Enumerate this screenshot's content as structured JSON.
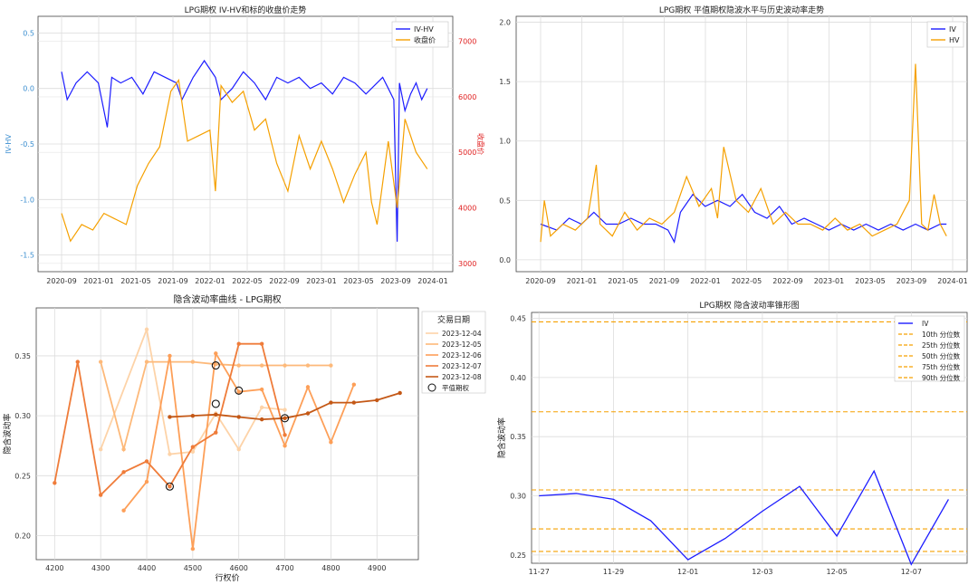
{
  "chart_data": [
    {
      "id": "iv_hv_close",
      "type": "line",
      "title": "LPG期权 IV-HV和标的收盘价走势",
      "x_ticks": [
        "2020-09",
        "2021-01",
        "2021-05",
        "2021-09",
        "2022-01",
        "2022-05",
        "2022-09",
        "2023-01",
        "2023-05",
        "2023-09",
        "2024-01"
      ],
      "ylabel_left": "IV-HV",
      "ylabel_right": "收盘价",
      "ylim_left": [
        -1.65,
        0.65
      ],
      "ylim_right": [
        2850,
        7450
      ],
      "y_ticks_left": [
        "0.5",
        "0.0",
        "-0.5",
        "-1.0",
        "-1.5"
      ],
      "y_ticks_right": [
        "7000",
        "6000",
        "5000",
        "4000",
        "3000"
      ],
      "legend": [
        "IV-HV",
        "收盘价"
      ],
      "series": [
        {
          "name": "IV-HV",
          "axis": "left",
          "color": "#1c1cff",
          "x": [
            2020.67,
            2020.72,
            2020.8,
            2020.9,
            2021.0,
            2021.08,
            2021.12,
            2021.2,
            2021.3,
            2021.4,
            2021.5,
            2021.6,
            2021.7,
            2021.75,
            2021.85,
            2021.95,
            2022.05,
            2022.1,
            2022.2,
            2022.3,
            2022.4,
            2022.5,
            2022.6,
            2022.7,
            2022.8,
            2022.9,
            2023.0,
            2023.1,
            2023.2,
            2023.3,
            2023.4,
            2023.5,
            2023.55,
            2023.6,
            2023.65,
            2023.68,
            2023.7,
            2023.75,
            2023.8,
            2023.85,
            2023.9,
            2023.95
          ],
          "y": [
            0.15,
            -0.1,
            0.05,
            0.15,
            0.05,
            -0.35,
            0.1,
            0.05,
            0.1,
            -0.05,
            0.15,
            0.1,
            0.05,
            -0.1,
            0.1,
            0.25,
            0.1,
            -0.1,
            0.0,
            0.15,
            0.05,
            -0.1,
            0.1,
            0.05,
            0.1,
            0.0,
            0.05,
            -0.05,
            0.1,
            0.05,
            -0.05,
            0.05,
            0.1,
            0.0,
            -0.1,
            -1.38,
            0.05,
            -0.2,
            -0.05,
            0.05,
            -0.1,
            0.0
          ]
        },
        {
          "name": "收盘价",
          "axis": "right",
          "color": "#f5a000",
          "x": [
            2020.67,
            2020.75,
            2020.85,
            2020.95,
            2021.05,
            2021.15,
            2021.25,
            2021.35,
            2021.45,
            2021.55,
            2021.65,
            2021.72,
            2021.8,
            2021.9,
            2022.0,
            2022.05,
            2022.1,
            2022.2,
            2022.3,
            2022.4,
            2022.5,
            2022.6,
            2022.7,
            2022.8,
            2022.9,
            2023.0,
            2023.1,
            2023.2,
            2023.3,
            2023.4,
            2023.45,
            2023.5,
            2023.6,
            2023.68,
            2023.75,
            2023.85,
            2023.95
          ],
          "y": [
            3900,
            3400,
            3700,
            3600,
            3900,
            3800,
            3700,
            4400,
            4800,
            5100,
            6100,
            6300,
            5200,
            5300,
            5400,
            4300,
            6200,
            5900,
            6100,
            5400,
            5600,
            4800,
            4300,
            5300,
            4700,
            5200,
            4700,
            4100,
            4600,
            5000,
            4100,
            3700,
            5200,
            4000,
            5600,
            5000,
            4700
          ]
        }
      ]
    },
    {
      "id": "iv_hv_trend",
      "type": "line",
      "title": "LPG期权 平值期权隐波水平与历史波动率走势",
      "x_ticks": [
        "2020-09",
        "2021-01",
        "2021-05",
        "2021-09",
        "2022-01",
        "2022-05",
        "2022-09",
        "2023-01",
        "2023-05",
        "2023-09",
        "2024-01"
      ],
      "ylim": [
        -0.1,
        2.05
      ],
      "y_ticks": [
        "2.0",
        "1.5",
        "1.0",
        "0.5",
        "0.0"
      ],
      "legend": [
        "IV",
        "HV"
      ],
      "series": [
        {
          "name": "IV",
          "color": "#1c1cff",
          "x": [
            2020.67,
            2020.8,
            2020.9,
            2021.0,
            2021.1,
            2021.2,
            2021.3,
            2021.4,
            2021.5,
            2021.6,
            2021.7,
            2021.75,
            2021.8,
            2021.9,
            2022.0,
            2022.1,
            2022.2,
            2022.3,
            2022.4,
            2022.5,
            2022.6,
            2022.7,
            2022.8,
            2022.9,
            2023.0,
            2023.1,
            2023.2,
            2023.3,
            2023.4,
            2023.5,
            2023.6,
            2023.7,
            2023.8,
            2023.9,
            2023.95
          ],
          "y": [
            0.3,
            0.25,
            0.35,
            0.3,
            0.4,
            0.3,
            0.3,
            0.35,
            0.3,
            0.3,
            0.25,
            0.15,
            0.4,
            0.55,
            0.45,
            0.5,
            0.45,
            0.55,
            0.4,
            0.35,
            0.45,
            0.3,
            0.35,
            0.3,
            0.25,
            0.3,
            0.25,
            0.3,
            0.25,
            0.3,
            0.25,
            0.3,
            0.25,
            0.3,
            0.3
          ]
        },
        {
          "name": "HV",
          "color": "#f5a000",
          "x": [
            2020.67,
            2020.7,
            2020.75,
            2020.85,
            2020.95,
            2021.05,
            2021.12,
            2021.15,
            2021.25,
            2021.35,
            2021.45,
            2021.55,
            2021.65,
            2021.75,
            2021.85,
            2021.95,
            2022.05,
            2022.1,
            2022.15,
            2022.25,
            2022.35,
            2022.45,
            2022.55,
            2022.65,
            2022.75,
            2022.85,
            2022.95,
            2023.05,
            2023.15,
            2023.25,
            2023.35,
            2023.45,
            2023.55,
            2023.6,
            2023.65,
            2023.7,
            2023.75,
            2023.8,
            2023.85,
            2023.9,
            2023.95
          ],
          "y": [
            0.15,
            0.5,
            0.2,
            0.3,
            0.25,
            0.35,
            0.8,
            0.3,
            0.2,
            0.4,
            0.25,
            0.35,
            0.3,
            0.4,
            0.7,
            0.45,
            0.6,
            0.35,
            0.95,
            0.5,
            0.4,
            0.6,
            0.3,
            0.4,
            0.3,
            0.3,
            0.25,
            0.35,
            0.25,
            0.3,
            0.2,
            0.25,
            0.3,
            0.4,
            0.5,
            1.65,
            0.3,
            0.25,
            0.55,
            0.3,
            0.2
          ]
        }
      ]
    },
    {
      "id": "iv_curve",
      "type": "line",
      "title": "隐含波动率曲线 - LPG期权",
      "xlabel": "行权价",
      "ylabel": "隐含波动率",
      "xlim": [
        4160,
        4990
      ],
      "ylim": [
        0.18,
        0.39
      ],
      "x_ticks": [
        4200,
        4300,
        4400,
        4500,
        4600,
        4700,
        4800,
        4900
      ],
      "y_ticks": [
        0.2,
        0.25,
        0.3,
        0.35
      ],
      "legend_title": "交易日期",
      "legend_marker_label": "平值期权",
      "series": [
        {
          "name": "2023-12-04",
          "color": "#fdd3a8",
          "points": [
            [
              4300,
              0.272
            ],
            [
              4400,
              0.372
            ],
            [
              4450,
              0.268
            ],
            [
              4500,
              0.27
            ],
            [
              4550,
              0.302
            ],
            [
              4600,
              0.272
            ],
            [
              4650,
              0.307
            ],
            [
              4700,
              0.305
            ]
          ]
        },
        {
          "name": "2023-12-05",
          "color": "#fdb97a",
          "points": [
            [
              4300,
              0.345
            ],
            [
              4350,
              0.272
            ],
            [
              4400,
              0.345
            ],
            [
              4500,
              0.345
            ],
            [
              4550,
              0.343
            ],
            [
              4600,
              0.342
            ],
            [
              4650,
              0.342
            ],
            [
              4700,
              0.342
            ],
            [
              4750,
              0.342
            ],
            [
              4800,
              0.342
            ]
          ]
        },
        {
          "name": "2023-12-06",
          "color": "#fd9f58",
          "points": [
            [
              4350,
              0.221
            ],
            [
              4400,
              0.245
            ],
            [
              4450,
              0.35
            ],
            [
              4500,
              0.189
            ],
            [
              4550,
              0.352
            ],
            [
              4600,
              0.32
            ],
            [
              4650,
              0.322
            ],
            [
              4700,
              0.275
            ],
            [
              4750,
              0.324
            ],
            [
              4800,
              0.278
            ],
            [
              4850,
              0.326
            ]
          ]
        },
        {
          "name": "2023-12-07",
          "color": "#ef7c3a",
          "points": [
            [
              4200,
              0.244
            ],
            [
              4250,
              0.345
            ],
            [
              4300,
              0.234
            ],
            [
              4350,
              0.253
            ],
            [
              4400,
              0.262
            ],
            [
              4450,
              0.241
            ],
            [
              4500,
              0.274
            ],
            [
              4550,
              0.286
            ],
            [
              4600,
              0.36
            ],
            [
              4650,
              0.36
            ],
            [
              4700,
              0.284
            ]
          ]
        },
        {
          "name": "2023-12-08",
          "color": "#c45816",
          "points": [
            [
              4450,
              0.299
            ],
            [
              4500,
              0.3
            ],
            [
              4550,
              0.301
            ],
            [
              4600,
              0.299
            ],
            [
              4650,
              0.297
            ],
            [
              4700,
              0.298
            ],
            [
              4750,
              0.302
            ],
            [
              4800,
              0.311
            ],
            [
              4850,
              0.311
            ],
            [
              4900,
              0.313
            ],
            [
              4950,
              0.319
            ]
          ]
        }
      ],
      "atm_points": [
        [
          4450,
          0.241
        ],
        [
          4550,
          0.31
        ],
        [
          4550,
          0.342
        ],
        [
          4600,
          0.321
        ],
        [
          4700,
          0.298
        ]
      ]
    },
    {
      "id": "iv_cone",
      "type": "line",
      "title": "LPG期权 隐含波动率锥形图",
      "ylabel": "隐含波动率",
      "ylim": [
        0.243,
        0.455
      ],
      "y_ticks": [
        "0.45",
        "0.40",
        "0.35",
        "0.30",
        "0.25"
      ],
      "x_ticks": [
        "11-27",
        "11-29",
        "12-01",
        "12-03",
        "12-05",
        "12-07"
      ],
      "xlim": [
        -0.2,
        11.5
      ],
      "series": [
        {
          "name": "IV",
          "color": "#1c1cff",
          "x": [
            0,
            1,
            2,
            3,
            4,
            5,
            6,
            7,
            8,
            9,
            10,
            11
          ],
          "y": [
            0.3,
            0.302,
            0.297,
            0.279,
            0.246,
            0.264,
            0.287,
            0.308,
            0.266,
            0.321,
            0.242,
            0.297
          ]
        }
      ],
      "percentiles": [
        {
          "name": "10th 分位数",
          "value": 0.253
        },
        {
          "name": "25th 分位数",
          "value": 0.272
        },
        {
          "name": "50th 分位数",
          "value": 0.305
        },
        {
          "name": "75th 分位数",
          "value": 0.371
        },
        {
          "name": "90th 分位数",
          "value": 0.447
        }
      ]
    }
  ],
  "colors": {
    "iv": "#1c1cff",
    "price": "#f5a000",
    "grid": "#dcdcdc",
    "axis_left": "#3b8ed0",
    "axis_right": "#e02020"
  }
}
